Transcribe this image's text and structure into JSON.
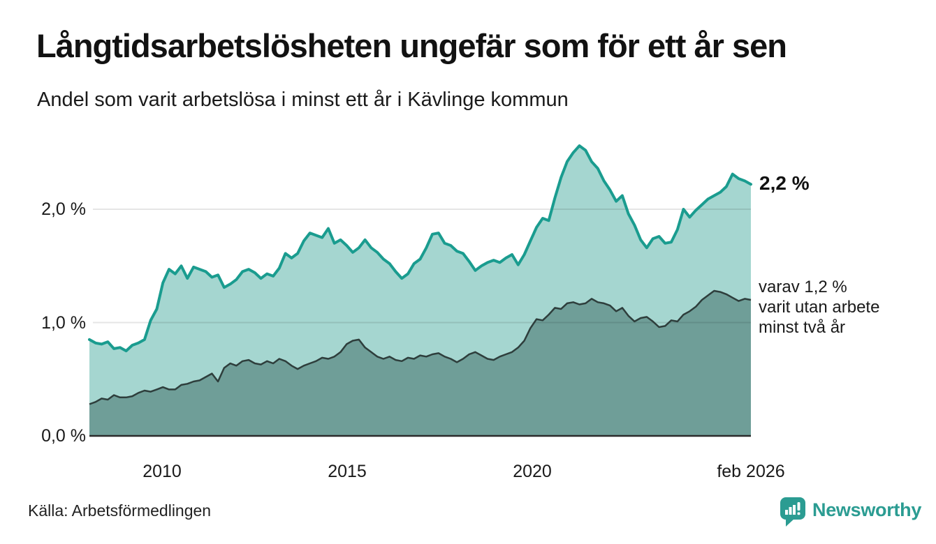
{
  "header": {
    "title": "Långtidsarbetslösheten ungefär som för ett år sen",
    "subtitle": "Andel som varit arbetslösa i minst ett år i Kävlinge kommun"
  },
  "chart_data": {
    "type": "area",
    "title": "Långtidsarbetslösheten ungefär som för ett år sen",
    "subtitle": "Andel som varit arbetslösa i minst ett år i Kävlinge kommun",
    "x_range": [
      "2008",
      "feb 2026"
    ],
    "ylim": [
      0,
      2.75
    ],
    "grid": true,
    "y_ticks": [
      {
        "label": "0,0 %",
        "value": 0
      },
      {
        "label": "1,0 %",
        "value": 1
      },
      {
        "label": "2,0 %",
        "value": 2
      }
    ],
    "x_ticks": [
      {
        "label": "2010",
        "f": 0.1065
      },
      {
        "label": "2015",
        "f": 0.3897
      },
      {
        "label": "2020",
        "f": 0.6694
      },
      {
        "label": "feb 2026",
        "f": 1.0
      }
    ],
    "series": [
      {
        "name": "Arbetslösa minst ett år",
        "end_value_label": "2,2 %",
        "line_color": "#1a9c8f",
        "fill_color": "#a5d6d0",
        "values": [
          0.85,
          0.82,
          0.81,
          0.83,
          0.77,
          0.78,
          0.75,
          0.8,
          0.82,
          0.85,
          1.02,
          1.12,
          1.35,
          1.47,
          1.43,
          1.5,
          1.39,
          1.49,
          1.47,
          1.45,
          1.4,
          1.42,
          1.31,
          1.34,
          1.38,
          1.45,
          1.47,
          1.44,
          1.39,
          1.43,
          1.41,
          1.48,
          1.61,
          1.57,
          1.61,
          1.72,
          1.79,
          1.77,
          1.75,
          1.83,
          1.7,
          1.73,
          1.68,
          1.62,
          1.66,
          1.73,
          1.66,
          1.62,
          1.56,
          1.52,
          1.45,
          1.39,
          1.43,
          1.52,
          1.56,
          1.66,
          1.78,
          1.79,
          1.7,
          1.68,
          1.63,
          1.61,
          1.54,
          1.46,
          1.5,
          1.53,
          1.55,
          1.53,
          1.57,
          1.6,
          1.51,
          1.6,
          1.72,
          1.84,
          1.92,
          1.9,
          2.1,
          2.28,
          2.42,
          2.5,
          2.56,
          2.52,
          2.42,
          2.36,
          2.25,
          2.17,
          2.07,
          2.12,
          1.96,
          1.86,
          1.73,
          1.66,
          1.74,
          1.76,
          1.7,
          1.71,
          1.82,
          2.0,
          1.93,
          1.99,
          2.04,
          2.09,
          2.12,
          2.15,
          2.2,
          2.31,
          2.27,
          2.25,
          2.22
        ]
      },
      {
        "name": "varav utan arbete minst två år",
        "end_value_label": "1,2 %",
        "line_color": "#2e3e3c",
        "fill_color": "#6f9e98",
        "values": [
          0.28,
          0.3,
          0.33,
          0.32,
          0.36,
          0.34,
          0.34,
          0.35,
          0.38,
          0.4,
          0.39,
          0.41,
          0.43,
          0.41,
          0.41,
          0.45,
          0.46,
          0.48,
          0.49,
          0.52,
          0.55,
          0.48,
          0.6,
          0.64,
          0.62,
          0.66,
          0.67,
          0.64,
          0.63,
          0.66,
          0.64,
          0.68,
          0.66,
          0.62,
          0.59,
          0.62,
          0.64,
          0.66,
          0.69,
          0.68,
          0.7,
          0.74,
          0.81,
          0.84,
          0.85,
          0.78,
          0.74,
          0.7,
          0.68,
          0.7,
          0.67,
          0.66,
          0.69,
          0.68,
          0.71,
          0.7,
          0.72,
          0.73,
          0.7,
          0.68,
          0.65,
          0.68,
          0.72,
          0.74,
          0.71,
          0.68,
          0.67,
          0.7,
          0.72,
          0.74,
          0.78,
          0.84,
          0.95,
          1.03,
          1.02,
          1.07,
          1.13,
          1.12,
          1.17,
          1.18,
          1.16,
          1.17,
          1.21,
          1.18,
          1.17,
          1.15,
          1.1,
          1.13,
          1.06,
          1.01,
          1.04,
          1.05,
          1.01,
          0.96,
          0.97,
          1.02,
          1.01,
          1.07,
          1.1,
          1.14,
          1.2,
          1.24,
          1.28,
          1.27,
          1.25,
          1.22,
          1.19,
          1.21,
          1.2
        ]
      }
    ],
    "annotations": {
      "end_total_label": "2,2 %",
      "end_two_year_lines": [
        "varav 1,2 %",
        "varit utan arbete",
        "minst två år"
      ]
    }
  },
  "footer": {
    "source": "Källa: Arbetsförmedlingen",
    "brand": "Newsworthy"
  },
  "colors": {
    "accent_teal": "#1a9c8f",
    "light_fill": "#a5d6d0",
    "dark_fill": "#6f9e98",
    "dark_line": "#2e3e3c",
    "brand_teal": "#2b9c92"
  }
}
